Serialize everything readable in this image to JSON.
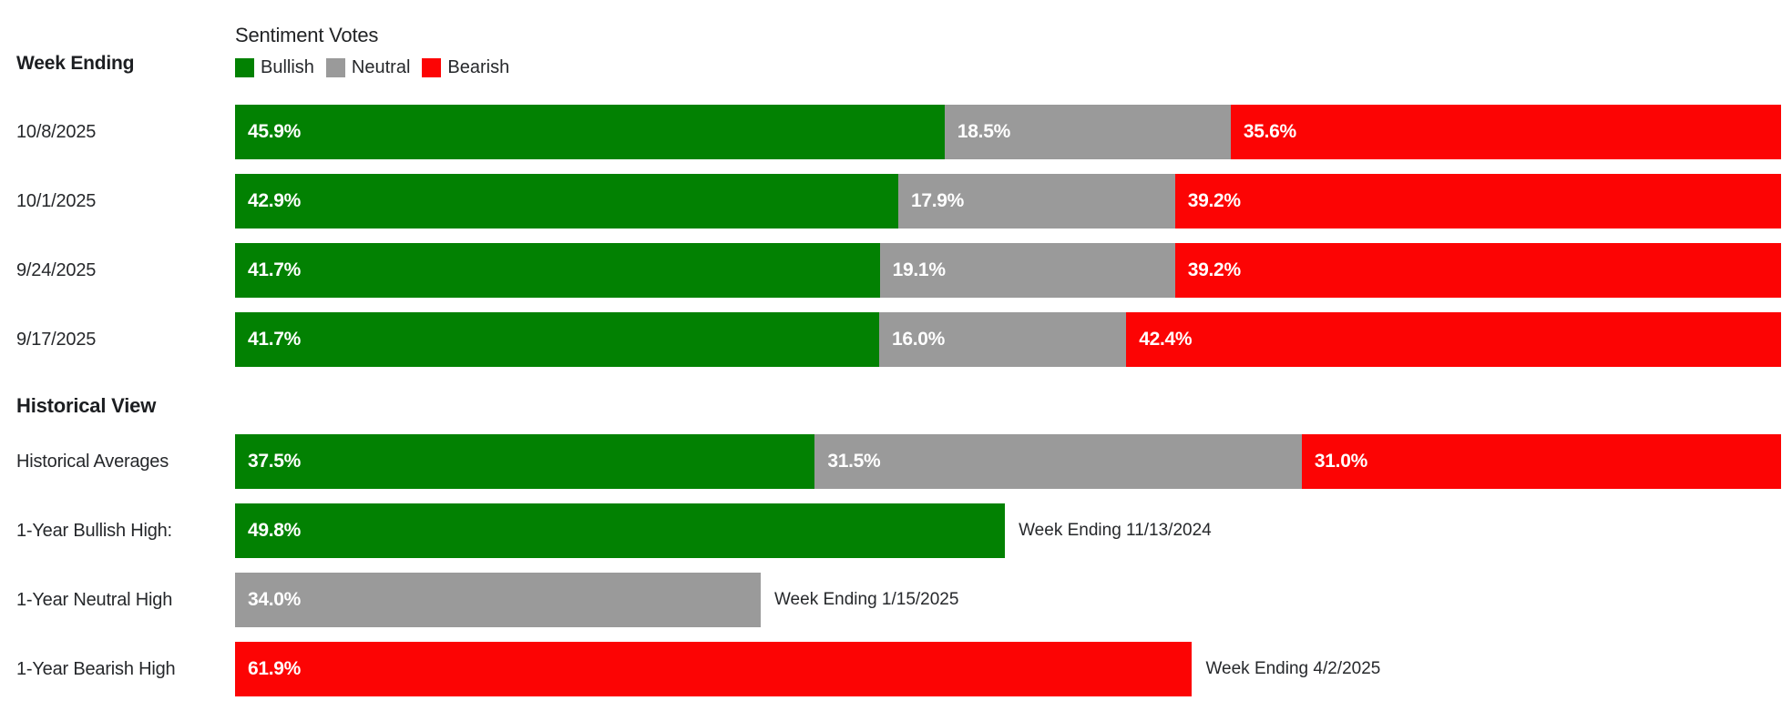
{
  "colors": {
    "bullish": "#028102",
    "neutral": "#9a9a9a",
    "bearish": "#fc0404"
  },
  "chart_data": {
    "type": "bar",
    "orientation": "horizontal",
    "stacked": true,
    "title": "Sentiment Votes",
    "row_axis_label": "Week Ending",
    "section_label": "Historical View",
    "legend": [
      "Bullish",
      "Neutral",
      "Bearish"
    ],
    "legend_position": "top-left",
    "xlim": [
      0,
      100
    ],
    "unit": "%",
    "grid": false,
    "weekly": [
      {
        "week_ending": "10/8/2025",
        "segments": [
          {
            "series": "Bullish",
            "value": 45.9,
            "text": "45.9%"
          },
          {
            "series": "Neutral",
            "value": 18.5,
            "text": "18.5%"
          },
          {
            "series": "Bearish",
            "value": 35.6,
            "text": "35.6%"
          }
        ]
      },
      {
        "week_ending": "10/1/2025",
        "segments": [
          {
            "series": "Bullish",
            "value": 42.9,
            "text": "42.9%"
          },
          {
            "series": "Neutral",
            "value": 17.9,
            "text": "17.9%"
          },
          {
            "series": "Bearish",
            "value": 39.2,
            "text": "39.2%"
          }
        ]
      },
      {
        "week_ending": "9/24/2025",
        "segments": [
          {
            "series": "Bullish",
            "value": 41.7,
            "text": "41.7%"
          },
          {
            "series": "Neutral",
            "value": 19.1,
            "text": "19.1%"
          },
          {
            "series": "Bearish",
            "value": 39.2,
            "text": "39.2%"
          }
        ]
      },
      {
        "week_ending": "9/17/2025",
        "segments": [
          {
            "series": "Bullish",
            "value": 41.7,
            "text": "41.7%"
          },
          {
            "series": "Neutral",
            "value": 16.0,
            "text": "16.0%"
          },
          {
            "series": "Bearish",
            "value": 42.4,
            "text": "42.4%"
          }
        ]
      }
    ],
    "historical": [
      {
        "label": "Historical Averages",
        "segments": [
          {
            "series": "Bullish",
            "value": 37.5,
            "text": "37.5%"
          },
          {
            "series": "Neutral",
            "value": 31.5,
            "text": "31.5%"
          },
          {
            "series": "Bearish",
            "value": 31.0,
            "text": "31.0%"
          }
        ],
        "annotation": ""
      },
      {
        "label": "1-Year Bullish High:",
        "segments": [
          {
            "series": "Bullish",
            "value": 49.8,
            "text": "49.8%"
          }
        ],
        "annotation": "Week Ending 11/13/2024"
      },
      {
        "label": "1-Year Neutral High",
        "segments": [
          {
            "series": "Neutral",
            "value": 34.0,
            "text": "34.0%"
          }
        ],
        "annotation": "Week Ending 1/15/2025"
      },
      {
        "label": "1-Year Bearish High",
        "segments": [
          {
            "series": "Bearish",
            "value": 61.9,
            "text": "61.9%"
          }
        ],
        "annotation": "Week Ending 4/2/2025"
      }
    ]
  }
}
